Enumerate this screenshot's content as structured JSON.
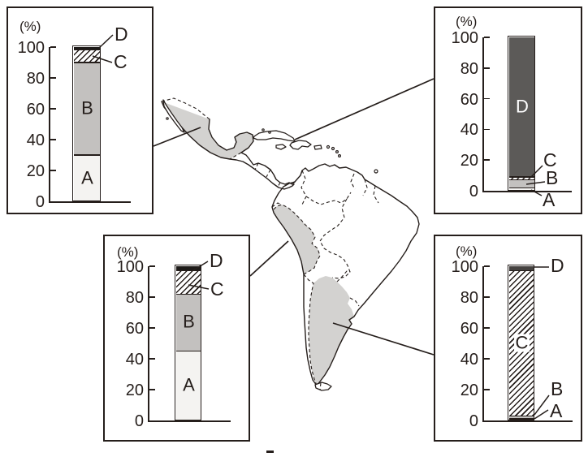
{
  "figure": {
    "kind": "regional ethnic composition stacked bars linked to a Latin America outline map",
    "unit_label": "(%)",
    "category_letters": [
      "A",
      "B",
      "C",
      "D"
    ]
  },
  "colors": {
    "ink": "#251e1b",
    "background": "#ffffff",
    "segment_a": "#f4f3f1",
    "segment_b": "#c3c1bf",
    "segment_d_black": "#1d1a18",
    "segment_d_dark_gray": "#5c5a58",
    "segment_d_charcoal": "#454240",
    "map_shade": "#d3d2d0"
  },
  "map": {
    "shaded_regions": [
      "mexico",
      "peru",
      "argentina"
    ],
    "connector_linked_regions": [
      "mexico",
      "caribbean-islands",
      "peru",
      "argentina"
    ],
    "shade_color": "#d3d2d0"
  },
  "chart_data": [
    {
      "id": "top-left",
      "type": "bar",
      "subtype": "stacked-percent-column",
      "linked_region": "mexico",
      "unit_label": "(%)",
      "ylim": [
        0,
        100
      ],
      "yticks": [
        0,
        20,
        40,
        60,
        80,
        100
      ],
      "categories": [
        "A",
        "B",
        "C",
        "D"
      ],
      "values": [
        30,
        60,
        8,
        2
      ],
      "fills": {
        "A": "#f4f3f1",
        "B": "#c3c1bf",
        "C": "hatch",
        "D": "#1d1a18"
      },
      "in_bar_labels": [
        {
          "text": "A"
        },
        {
          "text": "B"
        }
      ],
      "callout_labels": [
        "D",
        "C"
      ]
    },
    {
      "id": "top-right",
      "type": "bar",
      "subtype": "stacked-percent-column",
      "linked_region": "caribbean-islands",
      "unit_label": "(%)",
      "ylim": [
        0,
        100
      ],
      "yticks": [
        0,
        20,
        40,
        60,
        80,
        100
      ],
      "categories": [
        "A",
        "B",
        "C",
        "D"
      ],
      "values": [
        2,
        5,
        2,
        91
      ],
      "fills": {
        "A": "#f4f3f1",
        "B": "#c3c1bf",
        "C": "hatch",
        "D": "#5c5a58"
      },
      "in_bar_labels": [
        {
          "text": "D",
          "color": "#ffffff"
        }
      ],
      "callout_labels": [
        "C",
        "B",
        "A"
      ]
    },
    {
      "id": "bottom-left",
      "type": "bar",
      "subtype": "stacked-percent-column",
      "linked_region": "peru",
      "unit_label": "(%)",
      "ylim": [
        0,
        100
      ],
      "yticks": [
        0,
        20,
        40,
        60,
        80,
        100
      ],
      "categories": [
        "A",
        "B",
        "C",
        "D"
      ],
      "values": [
        45,
        37,
        15,
        3
      ],
      "fills": {
        "A": "#f4f3f1",
        "B": "#c3c1bf",
        "C": "hatch",
        "D": "#1d1a18"
      },
      "in_bar_labels": [
        {
          "text": "A"
        },
        {
          "text": "B"
        }
      ],
      "callout_labels": [
        "D",
        "C"
      ]
    },
    {
      "id": "bottom-right",
      "type": "bar",
      "subtype": "stacked-percent-column",
      "linked_region": "argentina",
      "unit_label": "(%)",
      "ylim": [
        0,
        100
      ],
      "yticks": [
        0,
        20,
        40,
        60,
        80,
        100
      ],
      "categories": [
        "A",
        "B",
        "C",
        "D"
      ],
      "values": [
        1,
        2,
        94,
        3
      ],
      "fills": {
        "A": "#f4f3f1",
        "B": "#c3c1bf",
        "C": "hatch",
        "D": "#454240"
      },
      "in_bar_labels": [
        {
          "text": "C",
          "halo": true
        }
      ],
      "callout_labels": [
        "D",
        "B",
        "A"
      ]
    }
  ]
}
